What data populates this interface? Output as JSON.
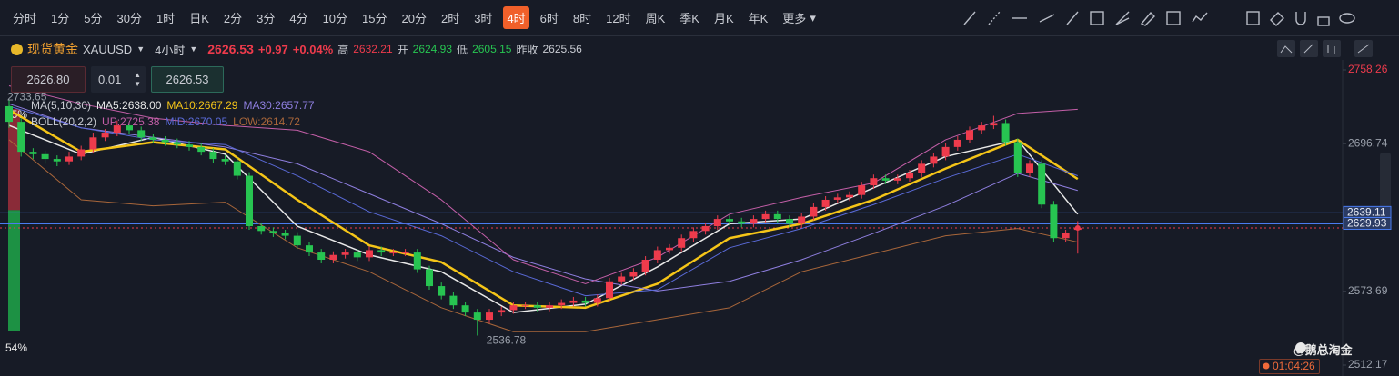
{
  "toolbar": {
    "timeframes": [
      "分时",
      "1分",
      "5分",
      "30分",
      "1时",
      "日K",
      "2分",
      "3分",
      "4分",
      "10分",
      "15分",
      "20分",
      "2时",
      "3时",
      "4时",
      "6时",
      "8时",
      "12时",
      "周K",
      "季K",
      "月K",
      "年K"
    ],
    "active": 14,
    "more": "更多"
  },
  "symbol": {
    "name": "现货黄金",
    "code": "XAUUSD",
    "period": "4小时",
    "change": "+0.97",
    "change_pct": "+0.04%",
    "high_label": "高",
    "open_label": "开",
    "low_label": "低",
    "prev_close_label": "昨收",
    "prev_close": 2625.56
  },
  "order": {
    "sell": "2626.80",
    "lot": "0.01",
    "buy": "2626.53"
  },
  "legend": {
    "ma": "MA(5,10,30)",
    "ma5": "MA5:2638.00",
    "ma10": "MA10:2667.29",
    "ma30": "MA30:2657.77",
    "boll": "BOLL(20,2,2)",
    "up": "UP:2725.38",
    "mid": "MID:2670.05",
    "low": "LOW:2614.72"
  },
  "ratio": {
    "values": [
      45,
      54
    ],
    "value_labels": [
      "45%",
      "54%"
    ],
    "colors": [
      "#a8303d",
      "#1e9e48"
    ]
  },
  "watermark": "@鹅总淘金",
  "countdown": "01:04:26",
  "chart_data": {
    "type": "candlestick",
    "up_color": "#ee3b4c",
    "down_color": "#27c451",
    "ylim": [
      2506.11,
      2763.56
    ],
    "yticks": [
      2758.26,
      2696.74,
      2573.69,
      2512.17
    ],
    "candles": [
      [
        2728,
        2733.65,
        2710,
        2715
      ],
      [
        2715,
        2718,
        2686,
        2690
      ],
      [
        2690,
        2693,
        2684,
        2688
      ],
      [
        2688,
        2691,
        2680,
        2684
      ],
      [
        2684,
        2687,
        2678,
        2682
      ],
      [
        2682,
        2690,
        2679,
        2686
      ],
      [
        2686,
        2695,
        2683,
        2692
      ],
      [
        2692,
        2706,
        2689,
        2702
      ],
      [
        2702,
        2709,
        2699,
        2706
      ],
      [
        2706,
        2716,
        2703,
        2712
      ],
      [
        2712,
        2715,
        2705,
        2708
      ],
      [
        2708,
        2711,
        2699,
        2702
      ],
      [
        2702,
        2705,
        2697,
        2700
      ],
      [
        2700,
        2703,
        2695,
        2698
      ],
      [
        2698,
        2701,
        2693,
        2696
      ],
      [
        2696,
        2699,
        2691,
        2694
      ],
      [
        2694,
        2697,
        2687,
        2690
      ],
      [
        2690,
        2693,
        2681,
        2684
      ],
      [
        2684,
        2687,
        2679,
        2682
      ],
      [
        2682,
        2685,
        2667,
        2670
      ],
      [
        2670,
        2673,
        2625,
        2628
      ],
      [
        2628,
        2631,
        2621,
        2624
      ],
      [
        2624,
        2627,
        2619,
        2622
      ],
      [
        2622,
        2625,
        2617,
        2620
      ],
      [
        2620,
        2623,
        2609,
        2612
      ],
      [
        2612,
        2615,
        2603,
        2606
      ],
      [
        2606,
        2609,
        2597,
        2600
      ],
      [
        2600,
        2607,
        2597,
        2604
      ],
      [
        2604,
        2609,
        2601,
        2606
      ],
      [
        2606,
        2609,
        2599,
        2602
      ],
      [
        2602,
        2611,
        2599,
        2608
      ],
      [
        2608,
        2611,
        2603,
        2606
      ],
      [
        2606,
        2609,
        2603,
        2606
      ],
      [
        2606,
        2609,
        2603,
        2606
      ],
      [
        2606,
        2609,
        2589,
        2592
      ],
      [
        2592,
        2595,
        2575,
        2578
      ],
      [
        2578,
        2581,
        2567,
        2570
      ],
      [
        2570,
        2573,
        2559,
        2562
      ],
      [
        2562,
        2565,
        2553,
        2556
      ],
      [
        2556,
        2559,
        2536.78,
        2550
      ],
      [
        2550,
        2559,
        2547,
        2556
      ],
      [
        2556,
        2561,
        2553,
        2558
      ],
      [
        2558,
        2565,
        2555,
        2562
      ],
      [
        2562,
        2565,
        2559,
        2562
      ],
      [
        2562,
        2565,
        2557,
        2560
      ],
      [
        2560,
        2565,
        2557,
        2562
      ],
      [
        2562,
        2567,
        2559,
        2564
      ],
      [
        2564,
        2569,
        2561,
        2566
      ],
      [
        2566,
        2569,
        2561,
        2564
      ],
      [
        2564,
        2571,
        2561,
        2568
      ],
      [
        2568,
        2585,
        2565,
        2582
      ],
      [
        2582,
        2589,
        2579,
        2586
      ],
      [
        2586,
        2593,
        2583,
        2590
      ],
      [
        2590,
        2603,
        2587,
        2600
      ],
      [
        2600,
        2611,
        2597,
        2608
      ],
      [
        2608,
        2613,
        2605,
        2610
      ],
      [
        2610,
        2621,
        2607,
        2618
      ],
      [
        2618,
        2627,
        2615,
        2624
      ],
      [
        2624,
        2631,
        2621,
        2628
      ],
      [
        2628,
        2637,
        2625,
        2634
      ],
      [
        2634,
        2637,
        2629,
        2632
      ],
      [
        2632,
        2635,
        2627,
        2630
      ],
      [
        2630,
        2637,
        2627,
        2634
      ],
      [
        2634,
        2641,
        2631,
        2638
      ],
      [
        2638,
        2641,
        2631,
        2634
      ],
      [
        2634,
        2637,
        2627,
        2630
      ],
      [
        2630,
        2639,
        2627,
        2636
      ],
      [
        2636,
        2647,
        2633,
        2644
      ],
      [
        2644,
        2653,
        2641,
        2650
      ],
      [
        2650,
        2655,
        2647,
        2652
      ],
      [
        2652,
        2657,
        2649,
        2654
      ],
      [
        2654,
        2665,
        2651,
        2662
      ],
      [
        2662,
        2671,
        2659,
        2668
      ],
      [
        2668,
        2671,
        2663,
        2666
      ],
      [
        2666,
        2671,
        2663,
        2668
      ],
      [
        2668,
        2675,
        2665,
        2672
      ],
      [
        2672,
        2683,
        2669,
        2680
      ],
      [
        2680,
        2689,
        2677,
        2686
      ],
      [
        2686,
        2697,
        2683,
        2694
      ],
      [
        2694,
        2703,
        2691,
        2700
      ],
      [
        2700,
        2711,
        2697,
        2708
      ],
      [
        2708,
        2715,
        2705,
        2712
      ],
      [
        2712,
        2720,
        2709,
        2714
      ],
      [
        2714,
        2717,
        2695,
        2698
      ],
      [
        2698,
        2701,
        2669,
        2672
      ],
      [
        2672,
        2683,
        2669,
        2680
      ],
      [
        2680,
        2683,
        2643,
        2646
      ],
      [
        2646,
        2649,
        2615,
        2618
      ],
      [
        2618,
        2625,
        2615,
        2622
      ],
      [
        2624.93,
        2632.21,
        2605.15,
        2626.53
      ]
    ],
    "line_x": [
      0,
      6,
      12,
      18,
      24,
      30,
      36,
      42,
      48,
      54,
      60,
      66,
      72,
      78,
      84,
      89
    ],
    "lines": [
      {
        "color": "#e8e8e8",
        "width": 1.5,
        "values": [
          2712,
          2688,
          2702,
          2688,
          2628,
          2604,
          2590,
          2556,
          2563,
          2594,
          2630,
          2634,
          2660,
          2686,
          2700,
          2638
        ]
      },
      {
        "color": "#f5c518",
        "width": 2.5,
        "values": [
          2725,
          2690,
          2698,
          2692,
          2650,
          2612,
          2598,
          2562,
          2560,
          2580,
          2618,
          2630,
          2650,
          2676,
          2700,
          2667.29
        ]
      },
      {
        "color": "#8f7fe0",
        "width": 1,
        "values": [
          2730,
          2710,
          2702,
          2694,
          2680,
          2655,
          2630,
          2602,
          2584,
          2574,
          2582,
          2600,
          2622,
          2645,
          2672,
          2657.77
        ]
      },
      {
        "color": "#c45fa8",
        "width": 1,
        "values": [
          2745,
          2730,
          2718,
          2712,
          2708,
          2690,
          2650,
          2600,
          2580,
          2602,
          2638,
          2652,
          2664,
          2700,
          2722,
          2725.38
        ]
      },
      {
        "color": "#5a6ad8",
        "width": 1,
        "values": [
          2728,
          2710,
          2700,
          2696,
          2670,
          2640,
          2620,
          2590,
          2570,
          2575,
          2610,
          2626,
          2646,
          2668,
          2688,
          2670.05
        ]
      },
      {
        "color": "#a8663a",
        "width": 1,
        "values": [
          2700,
          2650,
          2645,
          2648,
          2610,
          2590,
          2560,
          2540,
          2540,
          2550,
          2560,
          2590,
          2605,
          2620,
          2626,
          2614.72
        ]
      }
    ],
    "price_lines": [
      {
        "value": 2639.11,
        "color": "#4a7cf0"
      },
      {
        "value": 2629.93,
        "color": "#4a7cf0"
      }
    ]
  }
}
